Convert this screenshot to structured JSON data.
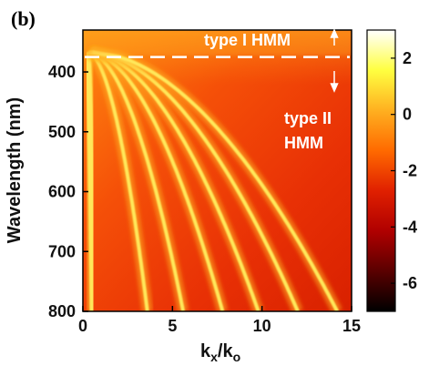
{
  "chart_data": {
    "type": "heatmap",
    "panel_label": "(b)",
    "xlabel_main": "k",
    "xlabel_sub1": "x",
    "xlabel_slash": "/k",
    "xlabel_sub2": "o",
    "ylabel": "Wavelength (nm)",
    "xlim": [
      0,
      15
    ],
    "ylim": [
      330,
      800
    ],
    "x_ticks": [
      0,
      5,
      10,
      15
    ],
    "y_ticks": [
      400,
      500,
      600,
      700,
      800
    ],
    "colorbar": {
      "range": [
        -7,
        3
      ],
      "ticks": [
        2,
        0,
        -2,
        -4,
        -6
      ],
      "stops": [
        "#000000",
        "#5a0000",
        "#b00000",
        "#e02000",
        "#ff6a00",
        "#ffb020",
        "#ffff40",
        "#ffffff"
      ]
    },
    "transition_wavelength": 375,
    "annotations": {
      "type1": "type I HMM",
      "type2_line1": "type II",
      "type2_line2": "HMM"
    },
    "bands_kx_at_800": [
      0.55,
      3.6,
      5.6,
      7.8,
      9.8,
      12.0,
      14.2
    ]
  }
}
